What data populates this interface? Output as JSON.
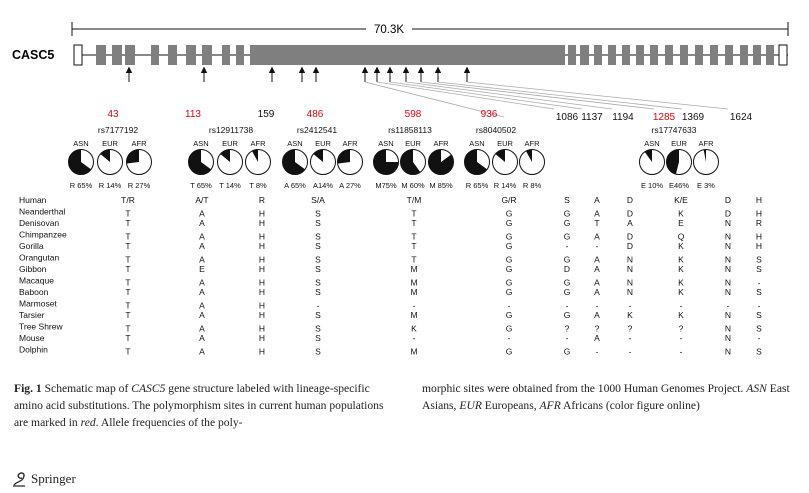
{
  "gene": "CASC5",
  "scale_label": "70.3K",
  "sites": [
    {
      "label": "43",
      "red": true
    },
    {
      "label": "113",
      "red": true
    },
    {
      "label": "159",
      "red": false
    },
    {
      "label": "486",
      "red": true
    },
    {
      "label": "598",
      "red": true
    },
    {
      "label": "936",
      "red": true
    },
    {
      "label": "1086",
      "red": false
    },
    {
      "label": "1137",
      "red": false
    },
    {
      "label": "1194",
      "red": false
    },
    {
      "label": "1285",
      "red": true
    },
    {
      "label": "1369",
      "red": false
    },
    {
      "label": "1624",
      "red": false
    }
  ],
  "snps": [
    {
      "id": "rs7177192",
      "pops": [
        {
          "name": "ASN",
          "freq_label": "R 65%",
          "fraction": 0.65
        },
        {
          "name": "EUR",
          "freq_label": "R 14%",
          "fraction": 0.14
        },
        {
          "name": "AFR",
          "freq_label": "R 27%",
          "fraction": 0.27
        }
      ]
    },
    {
      "id": "rs12911738",
      "pops": [
        {
          "name": "ASN",
          "freq_label": "T 65%",
          "fraction": 0.65
        },
        {
          "name": "EUR",
          "freq_label": "T 14%",
          "fraction": 0.14
        },
        {
          "name": "AFR",
          "freq_label": "T 8%",
          "fraction": 0.08
        }
      ]
    },
    {
      "id": "rs2412541",
      "pops": [
        {
          "name": "ASN",
          "freq_label": "A 65%",
          "fraction": 0.65
        },
        {
          "name": "EUR",
          "freq_label": "A14%",
          "fraction": 0.14
        },
        {
          "name": "AFR",
          "freq_label": "A 27%",
          "fraction": 0.27
        }
      ]
    },
    {
      "id": "rs11858113",
      "pops": [
        {
          "name": "ASN",
          "freq_label": "M75%",
          "fraction": 0.75
        },
        {
          "name": "EUR",
          "freq_label": "M 60%",
          "fraction": 0.6
        },
        {
          "name": "AFR",
          "freq_label": "M 85%",
          "fraction": 0.85
        }
      ]
    },
    {
      "id": "rs8040502",
      "pops": [
        {
          "name": "ASN",
          "freq_label": "R 65%",
          "fraction": 0.65
        },
        {
          "name": "EUR",
          "freq_label": "R 14%",
          "fraction": 0.14
        },
        {
          "name": "AFR",
          "freq_label": "R 8%",
          "fraction": 0.08
        }
      ]
    },
    {
      "id": "rs17747633",
      "pops": [
        {
          "name": "ASN",
          "freq_label": "E 10%",
          "fraction": 0.1
        },
        {
          "name": "EUR",
          "freq_label": "E46%",
          "fraction": 0.46
        },
        {
          "name": "AFR",
          "freq_label": "E 3%",
          "fraction": 0.03
        }
      ]
    }
  ],
  "table": [
    {
      "species": "Human",
      "cells": [
        "T/R",
        "A/T",
        "R",
        "S/A",
        "T/M",
        "G/R",
        "S",
        "A",
        "D",
        "K/E",
        "D",
        "H"
      ]
    },
    {
      "species": "Neanderthal",
      "cells": [
        "T",
        "A",
        "H",
        "S",
        "T",
        "G",
        "G",
        "A",
        "D",
        "K",
        "D",
        "H"
      ]
    },
    {
      "species": "Denisovan",
      "cells": [
        "T",
        "A",
        "H",
        "S",
        "T",
        "G",
        "G",
        "T",
        "A",
        "E",
        "N",
        "R"
      ]
    },
    {
      "species": "Chimpanzee",
      "cells": [
        "T",
        "A",
        "H",
        "S",
        "T",
        "G",
        "G",
        "A",
        "D",
        "Q",
        "N",
        "H"
      ]
    },
    {
      "species": "Gorilla",
      "cells": [
        "T",
        "A",
        "H",
        "S",
        "T",
        "G",
        "-",
        "-",
        "D",
        "K",
        "N",
        "H"
      ]
    },
    {
      "species": "Orangutan",
      "cells": [
        "T",
        "A",
        "H",
        "S",
        "T",
        "G",
        "G",
        "A",
        "N",
        "K",
        "N",
        "S"
      ]
    },
    {
      "species": "Gibbon",
      "cells": [
        "T",
        "E",
        "H",
        "S",
        "M",
        "G",
        "D",
        "A",
        "N",
        "K",
        "N",
        "S"
      ]
    },
    {
      "species": "Macaque",
      "cells": [
        "T",
        "A",
        "H",
        "S",
        "M",
        "G",
        "G",
        "A",
        "N",
        "K",
        "N",
        "-"
      ]
    },
    {
      "species": "Baboon",
      "cells": [
        "T",
        "A",
        "H",
        "S",
        "M",
        "G",
        "G",
        "A",
        "N",
        "K",
        "N",
        "S"
      ]
    },
    {
      "species": "Marmoset",
      "cells": [
        "T",
        "A",
        "H",
        "-",
        "-",
        "-",
        "-",
        "-",
        "-",
        "-",
        "-",
        "-"
      ]
    },
    {
      "species": "Tarsier",
      "cells": [
        "T",
        "A",
        "H",
        "S",
        "M",
        "G",
        "G",
        "A",
        "K",
        "K",
        "N",
        "S"
      ]
    },
    {
      "species": "Tree Shrew",
      "cells": [
        "T",
        "A",
        "H",
        "S",
        "K",
        "G",
        "?",
        "?",
        "?",
        "?",
        "N",
        "S"
      ]
    },
    {
      "species": "Mouse",
      "cells": [
        "T",
        "A",
        "H",
        "S",
        "-",
        "-",
        "-",
        "A",
        "-",
        "-",
        "N",
        "-"
      ]
    },
    {
      "species": "Dolphin",
      "cells": [
        "T",
        "A",
        "H",
        "S",
        "M",
        "G",
        "G",
        "-",
        "-",
        "-",
        "N",
        "S"
      ]
    }
  ],
  "caption": {
    "fig_label": "Fig. 1",
    "p1": " Schematic map of ",
    "gene_italic": "CASC5",
    "p2": " gene structure labeled with lineage-specific amino acid substitutions. The polymorphism sites in current human populations are marked in ",
    "red_italic": "red",
    "p3": ". Allele frequencies of the poly-",
    "p4": "morphic sites were obtained from the 1000 Human Genomes Project. ",
    "asn": "ASN",
    "asn_text": " East Asians, ",
    "eur": "EUR",
    "eur_text": " Europeans, ",
    "afr": "AFR",
    "afr_text": " Africans (color figure online)"
  },
  "publisher": "Springer",
  "colors": {
    "red": "#e8000b",
    "exon": "#7f7f7f",
    "ink": "#111111"
  }
}
